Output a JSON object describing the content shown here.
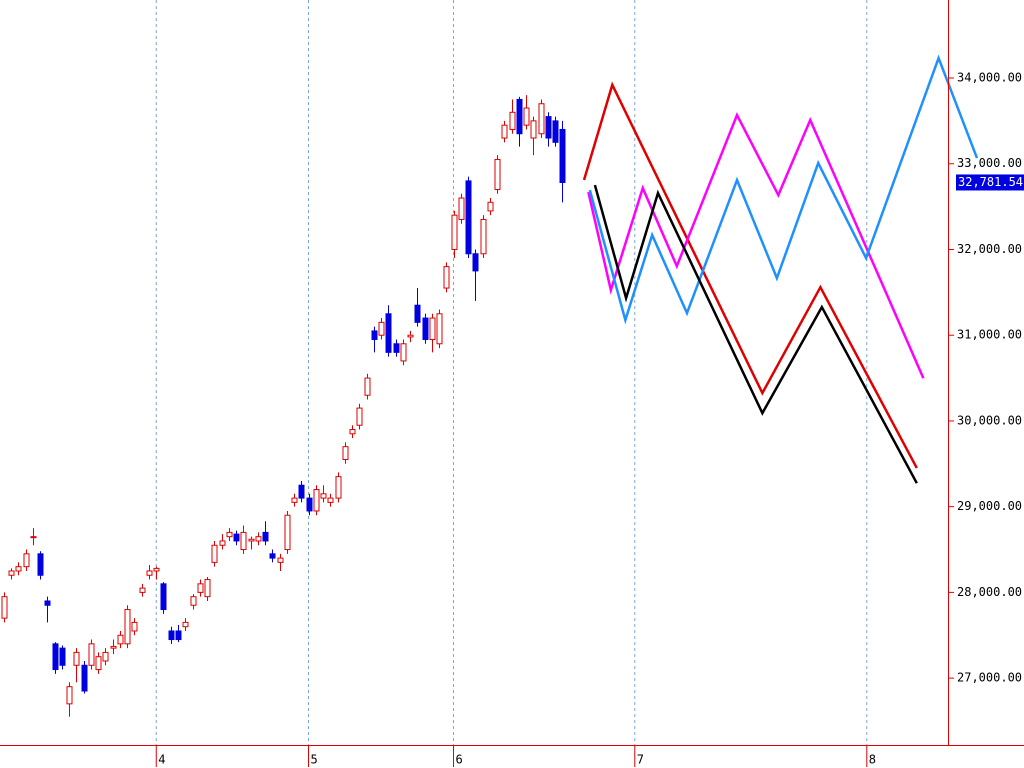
{
  "chart_data": {
    "type": "candlestick",
    "open": [
      27700,
      28200,
      28250,
      28300,
      28650,
      28450,
      27900,
      27400,
      27350,
      26700,
      27150,
      27150,
      27150,
      27100,
      27200,
      27350,
      27400,
      27400,
      27550,
      28000,
      28200,
      28250,
      28100,
      27550,
      27550,
      27600,
      27850,
      28000,
      27950,
      28350,
      28550,
      28650,
      28680,
      28500,
      28600,
      28600,
      28700,
      28450,
      28350,
      28500,
      29050,
      29250,
      29100,
      28950,
      29100,
      29050,
      29100,
      29550,
      29850,
      29950,
      30300,
      31050,
      31000,
      31250,
      30900,
      30700,
      30980,
      31350,
      31200,
      30950,
      30900,
      31550,
      32000,
      32350,
      32800,
      31950,
      31950,
      32450,
      32700,
      33300,
      33400,
      33750,
      33450,
      33300,
      33350,
      33550,
      33500,
      33400
    ],
    "high": [
      28000,
      28280,
      28350,
      28500,
      28750,
      28480,
      27950,
      27420,
      27380,
      26950,
      27350,
      27200,
      27450,
      27300,
      27350,
      27450,
      27550,
      27850,
      27700,
      28100,
      28320,
      28300,
      28120,
      27600,
      27620,
      27700,
      27980,
      28150,
      28180,
      28600,
      28680,
      28750,
      28720,
      28780,
      28650,
      28700,
      28830,
      28500,
      28450,
      28950,
      29150,
      29300,
      29150,
      29250,
      29250,
      29150,
      29400,
      29750,
      29950,
      30200,
      30550,
      31100,
      31200,
      31350,
      30950,
      30950,
      31050,
      31550,
      31250,
      31250,
      31300,
      31850,
      32450,
      32650,
      32850,
      32000,
      32400,
      32600,
      33100,
      33500,
      33750,
      33780,
      33800,
      33550,
      33750,
      33600,
      33550,
      33500
    ],
    "low": [
      27650,
      28150,
      28200,
      28250,
      28550,
      28150,
      27650,
      27050,
      27100,
      26550,
      26950,
      26820,
      27100,
      27050,
      27150,
      27280,
      27350,
      27350,
      27500,
      27950,
      28150,
      28150,
      27750,
      27400,
      27420,
      27550,
      27800,
      27950,
      27900,
      28300,
      28500,
      28600,
      28550,
      28450,
      28500,
      28550,
      28550,
      28350,
      28250,
      28450,
      29000,
      29050,
      28900,
      28900,
      29050,
      29000,
      29050,
      29500,
      29800,
      29900,
      30250,
      30800,
      30950,
      30750,
      30750,
      30650,
      30920,
      31100,
      30900,
      30800,
      30850,
      31500,
      31900,
      32300,
      31900,
      31400,
      31900,
      32400,
      32650,
      33250,
      33350,
      33200,
      33400,
      33100,
      33300,
      33200,
      33200,
      32550
    ],
    "close": [
      27950,
      28250,
      28300,
      28450,
      28650,
      28200,
      27850,
      27100,
      27150,
      26900,
      27300,
      26850,
      27400,
      27250,
      27300,
      27370,
      27500,
      27800,
      27650,
      28050,
      28250,
      28280,
      27800,
      27450,
      27450,
      27650,
      27950,
      28100,
      28150,
      28550,
      28600,
      28700,
      28600,
      28700,
      28620,
      28650,
      28600,
      28400,
      28400,
      28900,
      29100,
      29100,
      28950,
      29200,
      29150,
      29100,
      29350,
      29700,
      29900,
      30150,
      30500,
      30950,
      31150,
      30800,
      30800,
      30900,
      31000,
      31150,
      30950,
      31200,
      31250,
      31800,
      32400,
      32600,
      31950,
      31750,
      32350,
      32550,
      33050,
      33450,
      33600,
      33350,
      33650,
      33500,
      33700,
      33300,
      33250,
      32781.54
    ],
    "up_color": "#e00000",
    "down_color": "#0000e0",
    "projections": [
      {
        "color": "#e00000",
        "x": [
          80,
          83.9,
          104.6,
          112.6,
          125.9
        ],
        "values": [
          32810,
          33920,
          30325,
          31560,
          29450
        ]
      },
      {
        "color": "#ff00ff",
        "x": [
          80.6,
          83.7,
          88.1,
          92.8,
          101.1,
          106.8,
          111.2,
          119.2,
          126.8
        ],
        "values": [
          32670,
          31526,
          32716,
          31806,
          33568,
          32635,
          33510,
          31970,
          30500
        ]
      },
      {
        "color": "#1e90ff",
        "x": [
          80.8,
          85.7,
          89.4,
          94.2,
          101.1,
          106.6,
          112.3,
          118.9,
          128.9,
          134.2
        ],
        "values": [
          32693,
          31176,
          32168,
          31258,
          32810,
          31666,
          33008,
          31900,
          34233,
          33066
        ]
      },
      {
        "color": "#000000",
        "x": [
          81.5,
          85.8,
          90.2,
          104.6,
          112.8,
          125.9
        ],
        "values": [
          32751,
          31433,
          32658,
          30091,
          31328,
          29274
        ]
      }
    ],
    "xlim": [
      -0.55,
      130.2
    ],
    "xticks": [
      {
        "value": 21,
        "label": "4"
      },
      {
        "value": 42,
        "label": "5"
      },
      {
        "value": 62,
        "label": "6"
      },
      {
        "value": 87,
        "label": "7"
      },
      {
        "value": 119,
        "label": "8"
      }
    ],
    "ylim": [
      26220,
      34910
    ],
    "yticks": [
      {
        "value": 27000,
        "label": "27,000.00"
      },
      {
        "value": 28000,
        "label": "28,000.00"
      },
      {
        "value": 29000,
        "label": "29,000.00"
      },
      {
        "value": 30000,
        "label": "30,000.00"
      },
      {
        "value": 31000,
        "label": "31,000.00"
      },
      {
        "value": 32000,
        "label": "32,000.00"
      },
      {
        "value": 33000,
        "label": "33,000.00"
      },
      {
        "value": 34000,
        "label": "34,000.00"
      }
    ],
    "last_price": {
      "value": 32781.54,
      "label": "32,781.54"
    },
    "axis_color": "#e00000",
    "grid_color": "#7aa6d6"
  }
}
